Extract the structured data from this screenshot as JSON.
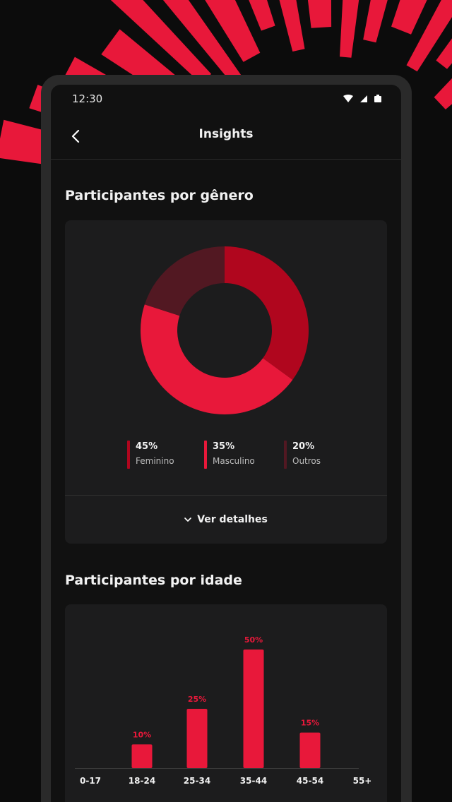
{
  "colors": {
    "accent": "#e8183a",
    "accent_dark": "#b0061e",
    "muted": "#521822",
    "card": "#1c1c1d",
    "background": "#111111"
  },
  "status_bar": {
    "time": "12:30"
  },
  "app_bar": {
    "title": "Insights",
    "back_icon": "chevron-left-icon"
  },
  "gender_section": {
    "title": "Participantes por gênero",
    "details_label": "Ver detalhes",
    "details_icon": "chevron-down-icon"
  },
  "age_section": {
    "title": "Participantes por idade"
  },
  "chart_data": [
    {
      "type": "pie",
      "categories": [
        "Feminino",
        "Masculino",
        "Outros"
      ],
      "values": [
        45,
        35,
        20
      ],
      "value_labels": [
        "45%",
        "35%",
        "20%"
      ],
      "colors": [
        "#e8183a",
        "#b0061e",
        "#521822"
      ],
      "title": "Participantes por gênero"
    },
    {
      "type": "bar",
      "categories": [
        "0-17",
        "18-24",
        "25-34",
        "35-44",
        "45-54",
        "55+"
      ],
      "values": [
        0,
        10,
        25,
        50,
        15,
        0
      ],
      "value_labels": [
        "",
        "10%",
        "25%",
        "50%",
        "15%",
        ""
      ],
      "ylim": [
        0,
        55
      ],
      "title": "Participantes por idade",
      "xlabel": "",
      "ylabel": ""
    }
  ]
}
